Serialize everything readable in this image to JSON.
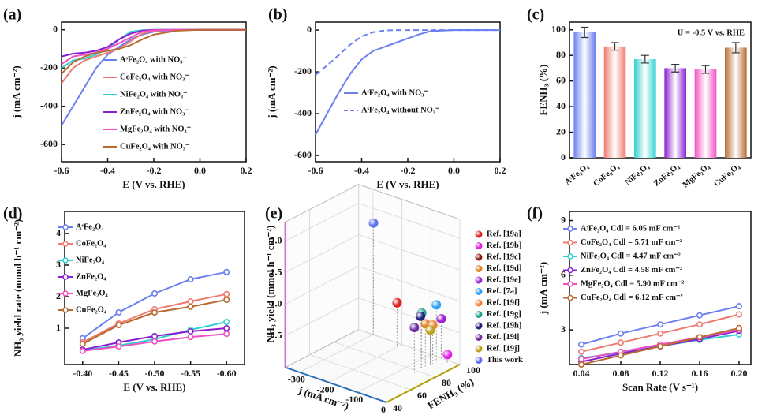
{
  "chart_data": [
    {
      "label": "(a)",
      "type": "line",
      "xlabel": "E (V vs. RHE)",
      "ylabel": "j (mA cm⁻²)",
      "x": [
        -0.6,
        -0.55,
        -0.5,
        -0.45,
        -0.4,
        -0.35,
        -0.3,
        -0.25,
        -0.2,
        -0.1,
        0,
        0.2
      ],
      "series": [
        {
          "name": "AˢFe₂O₄ with NO₃⁻",
          "color": "#6b7ff0",
          "values": [
            -500,
            -400,
            -300,
            -200,
            -130,
            -90,
            -50,
            -25,
            -10,
            -2,
            0,
            0
          ]
        },
        {
          "name": "CoFe₂O₄ with NO₃⁻",
          "color": "#f07a70",
          "values": [
            -280,
            -200,
            -160,
            -140,
            -120,
            -100,
            -60,
            -20,
            -5,
            -1,
            0,
            0
          ]
        },
        {
          "name": "NiFe₂O₄ with NO₃⁻",
          "color": "#30d0d0",
          "values": [
            -200,
            -160,
            -150,
            -130,
            -100,
            -50,
            -10,
            -2,
            0,
            0,
            0,
            0
          ]
        },
        {
          "name": "ZnFe₂O₄ with NO₃⁻",
          "color": "#8a1ed0",
          "values": [
            -140,
            -125,
            -120,
            -110,
            -90,
            -50,
            -20,
            -5,
            -1,
            0,
            0,
            0
          ]
        },
        {
          "name": "MgFe₂O₄ with NO₃⁻",
          "color": "#f050c0",
          "values": [
            -180,
            -140,
            -130,
            -120,
            -100,
            -70,
            -40,
            -10,
            -2,
            0,
            0,
            0
          ]
        },
        {
          "name": "CuFe₂O₄ with NO₃⁻",
          "color": "#b86a30",
          "values": [
            -230,
            -170,
            -140,
            -120,
            -110,
            -100,
            -80,
            -50,
            -25,
            -5,
            0,
            0
          ]
        }
      ],
      "xlim": [
        -0.6,
        0.2
      ],
      "ylim": [
        -690,
        40
      ],
      "xticks": [
        -0.6,
        -0.4,
        -0.2,
        {
          "value": 0,
          "label": "0.0"
        },
        0.2
      ],
      "yticks": [
        0,
        -200,
        -400,
        -600
      ]
    },
    {
      "label": "(b)",
      "type": "line",
      "xlabel": "E (V vs. RHE)",
      "ylabel": "j (mA cm⁻²)",
      "x": [
        -0.6,
        -0.55,
        -0.5,
        -0.45,
        -0.4,
        -0.35,
        -0.3,
        -0.25,
        -0.2,
        -0.15,
        -0.1,
        0,
        0.2
      ],
      "series": [
        {
          "name": "AˢFe₂O₄ with NO₃⁻",
          "color": "#6b7ff0",
          "style": "solid",
          "values": [
            -500,
            -400,
            -300,
            -210,
            -140,
            -100,
            -80,
            -60,
            -40,
            -20,
            -5,
            0,
            0
          ]
        },
        {
          "name": "AˢFe₂O₄ without NO₃⁻",
          "color": "#6b7ff0",
          "style": "dashed",
          "values": [
            -215,
            -170,
            -120,
            -70,
            -30,
            -10,
            -2,
            0,
            0,
            0,
            0,
            0,
            0
          ]
        }
      ],
      "xlim": [
        -0.6,
        0.2
      ],
      "ylim": [
        -630,
        38
      ],
      "xticks": [
        -0.6,
        -0.4,
        -0.2,
        {
          "value": 0,
          "label": "0.0"
        },
        0.2
      ],
      "yticks": [
        0,
        -200,
        -400,
        -600
      ]
    },
    {
      "label": "(c)",
      "type": "bar",
      "ylabel": "FENH₃ (%)",
      "annotation": "U = -0.5 V vs. RHE",
      "categories": [
        "AˢFe₂O₄",
        "CoFe₂O₄",
        "NiFe₂O₄",
        "ZnFe₂O₄",
        "MgFe₂O₄",
        "CuFe₂O₄"
      ],
      "values": [
        98,
        87,
        77,
        70,
        69,
        86
      ],
      "errors": [
        4,
        3,
        3,
        3,
        3,
        4
      ],
      "colors": [
        "#6b7ff0",
        "#f07a70",
        "#30d0d0",
        "#8a1ed0",
        "#f050c0",
        "#b86a30"
      ],
      "ylim": [
        0,
        106
      ],
      "yticks": [
        0,
        20,
        40,
        60,
        80,
        100
      ]
    },
    {
      "label": "(d)",
      "type": "line",
      "markers": true,
      "xlabel": "E (V vs. RHE)",
      "ylabel": "NH₃ yield rate (mmol h⁻¹ cm⁻²)",
      "x": [
        -0.4,
        -0.45,
        -0.5,
        -0.55,
        -0.6
      ],
      "series": [
        {
          "name": "AˢFe₂O₄",
          "color": "#6b7ff0",
          "values": [
            0.68,
            1.5,
            2.1,
            2.55,
            2.78
          ]
        },
        {
          "name": "CoFe₂O₄",
          "color": "#f07a70",
          "values": [
            0.55,
            1.15,
            1.6,
            1.85,
            2.08
          ]
        },
        {
          "name": "NiFe₂O₄",
          "color": "#30d0d0",
          "values": [
            0.3,
            0.45,
            0.65,
            0.95,
            1.2
          ]
        },
        {
          "name": "ZnFe₂O₄",
          "color": "#8a1ed0",
          "values": [
            0.32,
            0.55,
            0.75,
            0.9,
            1.0
          ]
        },
        {
          "name": "MgFe₂O₄",
          "color": "#f050c0",
          "values": [
            0.28,
            0.42,
            0.58,
            0.72,
            0.82
          ]
        },
        {
          "name": "CuFe₂O₄",
          "color": "#b86a30",
          "values": [
            0.5,
            1.1,
            1.5,
            1.68,
            1.9
          ]
        }
      ],
      "xlim": [
        -0.375,
        -0.625
      ],
      "ylim": [
        -0.15,
        4.7
      ],
      "xticks": [
        {
          "value": -0.4,
          "label": "-0.40"
        },
        -0.45,
        {
          "value": -0.5,
          "label": "-0.50"
        },
        -0.55,
        {
          "value": -0.6,
          "label": "-0.60"
        }
      ],
      "yticks": [
        1,
        2,
        3,
        4
      ]
    },
    {
      "label": "(e)",
      "type": "scatter3d",
      "xlabel": "j (mA cm⁻²)",
      "ylabel": "FENH₃ (%)",
      "zlabel": "NH₃ yield (mmol h⁻¹ cm⁻²)",
      "names": [
        "Ref. [19a]",
        "Ref. [19b]",
        "Ref. [19c]",
        "Ref. [19d]",
        "Ref. [19e]",
        "Ref. [7a]",
        "Ref. [19f]",
        "Ref. [19g]",
        "Ref. [19h]",
        "Ref. [19i]",
        "Ref. [19j]",
        "This work"
      ],
      "colors": [
        "#e02020",
        "#e020e0",
        "#8b1a1a",
        "#e08020",
        "#a020d0",
        "#30a0f0",
        "#f08030",
        "#20a090",
        "#202080",
        "#7030a0",
        "#c0a020",
        "#6070f0"
      ],
      "x": [
        -200,
        -30,
        -60,
        -60,
        -60,
        -60,
        -60,
        -60,
        -60,
        -60,
        -60,
        -290
      ],
      "y": [
        96,
        97,
        90,
        86,
        99,
        95,
        92,
        83,
        82,
        77,
        90,
        98
      ],
      "z": [
        0.7,
        0.14,
        0.62,
        0.69,
        0.64,
        0.9,
        0.61,
        0.89,
        0.85,
        0.72,
        0.55,
        1.8
      ],
      "xlim": [
        -350,
        0
      ],
      "ylim": [
        40,
        100
      ],
      "zlim": [
        0,
        2.3
      ],
      "xticks": [
        -300,
        -200,
        -100,
        0
      ],
      "yticks": [
        40,
        60,
        80,
        100
      ],
      "zticks": [
        0.5,
        {
          "value": 1,
          "label": "1.0"
        },
        1.5,
        {
          "value": 2,
          "label": "2.0"
        }
      ]
    },
    {
      "label": "(f)",
      "type": "line",
      "markers": true,
      "xlabel": "Scan Rate (V s⁻¹)",
      "ylabel": "j (mA cm⁻²)",
      "x": [
        0.04,
        0.08,
        0.12,
        0.16,
        0.2
      ],
      "series": [
        {
          "name": "AˢFe₂O₄ Cdl = 6.05 mF cm⁻²",
          "color": "#6b7ff0",
          "values": [
            2.2,
            2.8,
            3.3,
            3.8,
            4.3
          ]
        },
        {
          "name": "CoFe₂O₄ Cdl = 5.71 mF cm⁻²",
          "color": "#f07a70",
          "values": [
            1.8,
            2.3,
            2.8,
            3.3,
            3.85
          ]
        },
        {
          "name": "NiFe₂O₄ Cdl = 4.47 mF cm⁻²",
          "color": "#30d0d0",
          "values": [
            1.45,
            1.75,
            2.1,
            2.45,
            2.75
          ]
        },
        {
          "name": "ZnFe₂O₄ Cdl = 4.58 mF cm⁻²",
          "color": "#8a1ed0",
          "values": [
            1.25,
            1.7,
            2.1,
            2.5,
            2.95
          ]
        },
        {
          "name": "MgFe₂O₄ Cdl = 5.90 mF cm⁻²",
          "color": "#f050c0",
          "values": [
            1.4,
            1.8,
            2.2,
            2.6,
            3.0
          ]
        },
        {
          "name": "CuFe₂O₄ Cdl = 6.12 mF cm⁻²",
          "color": "#b86a30",
          "values": [
            1.1,
            1.6,
            2.1,
            2.6,
            3.1
          ]
        }
      ],
      "xlim": [
        0.028,
        0.212
      ],
      "ylim": [
        1.1,
        9.5
      ],
      "xticks": [
        0.04,
        0.08,
        0.12,
        0.16,
        {
          "value": 0.2,
          "label": "0.20"
        }
      ],
      "yticks": [
        3,
        6,
        9
      ]
    }
  ]
}
